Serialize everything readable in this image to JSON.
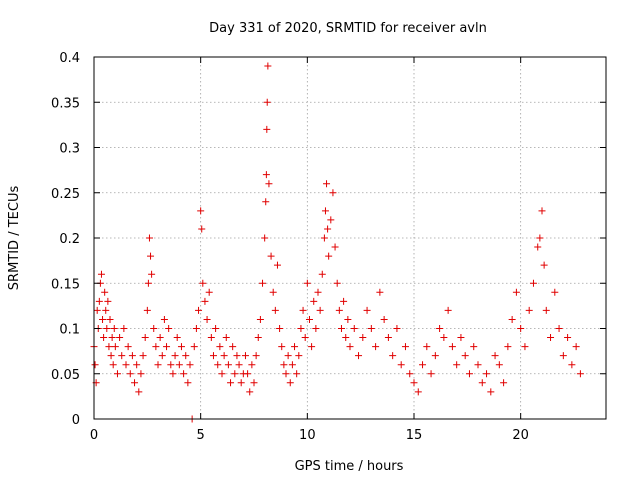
{
  "chart_data": {
    "type": "scatter",
    "title": "Day 331 of 2020, SRMTID for receiver avln",
    "xlabel": "GPS time / hours",
    "ylabel": "SRMTID / TECUs",
    "xlim": [
      0,
      24
    ],
    "ylim": [
      0,
      0.4
    ],
    "xticks": [
      0,
      5,
      10,
      15,
      20
    ],
    "xtick_labels": [
      "0",
      "5",
      "10",
      "15",
      "20"
    ],
    "yticks": [
      0,
      0.05,
      0.1,
      0.15,
      0.2,
      0.25,
      0.3,
      0.35,
      0.4
    ],
    "ytick_labels": [
      "0",
      "0.05",
      "0.1",
      "0.15",
      "0.2",
      "0.25",
      "0.3",
      "0.35",
      "0.4"
    ],
    "grid": true,
    "marker": "plus",
    "color": "#e00000",
    "series": [
      {
        "name": "SRMTID",
        "points": [
          [
            0.0,
            0.08
          ],
          [
            0.05,
            0.06
          ],
          [
            0.1,
            0.04
          ],
          [
            0.15,
            0.12
          ],
          [
            0.2,
            0.1
          ],
          [
            0.25,
            0.13
          ],
          [
            0.3,
            0.15
          ],
          [
            0.35,
            0.16
          ],
          [
            0.4,
            0.11
          ],
          [
            0.45,
            0.09
          ],
          [
            0.5,
            0.14
          ],
          [
            0.55,
            0.12
          ],
          [
            0.6,
            0.1
          ],
          [
            0.65,
            0.13
          ],
          [
            0.7,
            0.08
          ],
          [
            0.75,
            0.11
          ],
          [
            0.8,
            0.07
          ],
          [
            0.85,
            0.09
          ],
          [
            0.9,
            0.06
          ],
          [
            0.95,
            0.1
          ],
          [
            1.0,
            0.08
          ],
          [
            1.1,
            0.05
          ],
          [
            1.2,
            0.09
          ],
          [
            1.3,
            0.07
          ],
          [
            1.4,
            0.1
          ],
          [
            1.5,
            0.06
          ],
          [
            1.6,
            0.08
          ],
          [
            1.7,
            0.05
          ],
          [
            1.8,
            0.07
          ],
          [
            1.9,
            0.04
          ],
          [
            2.0,
            0.06
          ],
          [
            2.1,
            0.03
          ],
          [
            2.2,
            0.05
          ],
          [
            2.3,
            0.07
          ],
          [
            2.4,
            0.09
          ],
          [
            2.5,
            0.12
          ],
          [
            2.55,
            0.15
          ],
          [
            2.6,
            0.2
          ],
          [
            2.65,
            0.18
          ],
          [
            2.7,
            0.16
          ],
          [
            2.8,
            0.1
          ],
          [
            2.9,
            0.08
          ],
          [
            3.0,
            0.06
          ],
          [
            3.1,
            0.09
          ],
          [
            3.2,
            0.07
          ],
          [
            3.3,
            0.11
          ],
          [
            3.4,
            0.08
          ],
          [
            3.5,
            0.1
          ],
          [
            3.6,
            0.06
          ],
          [
            3.7,
            0.05
          ],
          [
            3.8,
            0.07
          ],
          [
            3.9,
            0.09
          ],
          [
            4.0,
            0.06
          ],
          [
            4.1,
            0.08
          ],
          [
            4.2,
            0.05
          ],
          [
            4.3,
            0.07
          ],
          [
            4.4,
            0.04
          ],
          [
            4.5,
            0.06
          ],
          [
            4.6,
            0.0
          ],
          [
            4.7,
            0.08
          ],
          [
            4.8,
            0.1
          ],
          [
            4.9,
            0.12
          ],
          [
            5.0,
            0.23
          ],
          [
            5.05,
            0.21
          ],
          [
            5.1,
            0.15
          ],
          [
            5.2,
            0.13
          ],
          [
            5.3,
            0.11
          ],
          [
            5.4,
            0.14
          ],
          [
            5.5,
            0.09
          ],
          [
            5.6,
            0.07
          ],
          [
            5.7,
            0.1
          ],
          [
            5.8,
            0.06
          ],
          [
            5.9,
            0.08
          ],
          [
            6.0,
            0.05
          ],
          [
            6.1,
            0.07
          ],
          [
            6.2,
            0.09
          ],
          [
            6.3,
            0.06
          ],
          [
            6.4,
            0.04
          ],
          [
            6.5,
            0.08
          ],
          [
            6.6,
            0.05
          ],
          [
            6.7,
            0.07
          ],
          [
            6.8,
            0.06
          ],
          [
            6.9,
            0.04
          ],
          [
            7.0,
            0.05
          ],
          [
            7.1,
            0.07
          ],
          [
            7.2,
            0.05
          ],
          [
            7.3,
            0.03
          ],
          [
            7.4,
            0.06
          ],
          [
            7.5,
            0.04
          ],
          [
            7.6,
            0.07
          ],
          [
            7.7,
            0.09
          ],
          [
            7.8,
            0.11
          ],
          [
            7.9,
            0.15
          ],
          [
            8.0,
            0.2
          ],
          [
            8.05,
            0.24
          ],
          [
            8.08,
            0.27
          ],
          [
            8.1,
            0.32
          ],
          [
            8.12,
            0.35
          ],
          [
            8.15,
            0.39
          ],
          [
            8.2,
            0.26
          ],
          [
            8.3,
            0.18
          ],
          [
            8.4,
            0.14
          ],
          [
            8.5,
            0.12
          ],
          [
            8.6,
            0.17
          ],
          [
            8.7,
            0.1
          ],
          [
            8.8,
            0.08
          ],
          [
            8.9,
            0.06
          ],
          [
            9.0,
            0.05
          ],
          [
            9.1,
            0.07
          ],
          [
            9.2,
            0.04
          ],
          [
            9.3,
            0.06
          ],
          [
            9.4,
            0.08
          ],
          [
            9.5,
            0.05
          ],
          [
            9.6,
            0.07
          ],
          [
            9.7,
            0.1
          ],
          [
            9.8,
            0.12
          ],
          [
            9.9,
            0.09
          ],
          [
            10.0,
            0.15
          ],
          [
            10.1,
            0.11
          ],
          [
            10.2,
            0.08
          ],
          [
            10.3,
            0.13
          ],
          [
            10.4,
            0.1
          ],
          [
            10.5,
            0.14
          ],
          [
            10.6,
            0.12
          ],
          [
            10.7,
            0.16
          ],
          [
            10.8,
            0.2
          ],
          [
            10.85,
            0.23
          ],
          [
            10.9,
            0.26
          ],
          [
            10.95,
            0.21
          ],
          [
            11.0,
            0.18
          ],
          [
            11.1,
            0.22
          ],
          [
            11.2,
            0.25
          ],
          [
            11.3,
            0.19
          ],
          [
            11.4,
            0.15
          ],
          [
            11.5,
            0.12
          ],
          [
            11.6,
            0.1
          ],
          [
            11.7,
            0.13
          ],
          [
            11.8,
            0.09
          ],
          [
            11.9,
            0.11
          ],
          [
            12.0,
            0.08
          ],
          [
            12.2,
            0.1
          ],
          [
            12.4,
            0.07
          ],
          [
            12.6,
            0.09
          ],
          [
            12.8,
            0.12
          ],
          [
            13.0,
            0.1
          ],
          [
            13.2,
            0.08
          ],
          [
            13.4,
            0.14
          ],
          [
            13.6,
            0.11
          ],
          [
            13.8,
            0.09
          ],
          [
            14.0,
            0.07
          ],
          [
            14.2,
            0.1
          ],
          [
            14.4,
            0.06
          ],
          [
            14.6,
            0.08
          ],
          [
            14.8,
            0.05
          ],
          [
            15.0,
            0.04
          ],
          [
            15.2,
            0.03
          ],
          [
            15.4,
            0.06
          ],
          [
            15.6,
            0.08
          ],
          [
            15.8,
            0.05
          ],
          [
            16.0,
            0.07
          ],
          [
            16.2,
            0.1
          ],
          [
            16.4,
            0.09
          ],
          [
            16.6,
            0.12
          ],
          [
            16.8,
            0.08
          ],
          [
            17.0,
            0.06
          ],
          [
            17.2,
            0.09
          ],
          [
            17.4,
            0.07
          ],
          [
            17.6,
            0.05
          ],
          [
            17.8,
            0.08
          ],
          [
            18.0,
            0.06
          ],
          [
            18.2,
            0.04
          ],
          [
            18.4,
            0.05
          ],
          [
            18.6,
            0.03
          ],
          [
            18.8,
            0.07
          ],
          [
            19.0,
            0.06
          ],
          [
            19.2,
            0.04
          ],
          [
            19.4,
            0.08
          ],
          [
            19.6,
            0.11
          ],
          [
            19.8,
            0.14
          ],
          [
            20.0,
            0.1
          ],
          [
            20.2,
            0.08
          ],
          [
            20.4,
            0.12
          ],
          [
            20.6,
            0.15
          ],
          [
            20.8,
            0.19
          ],
          [
            20.9,
            0.2
          ],
          [
            21.0,
            0.23
          ],
          [
            21.1,
            0.17
          ],
          [
            21.2,
            0.12
          ],
          [
            21.4,
            0.09
          ],
          [
            21.6,
            0.14
          ],
          [
            21.8,
            0.1
          ],
          [
            22.0,
            0.07
          ],
          [
            22.2,
            0.09
          ],
          [
            22.4,
            0.06
          ],
          [
            22.6,
            0.08
          ],
          [
            22.8,
            0.05
          ]
        ]
      }
    ]
  }
}
